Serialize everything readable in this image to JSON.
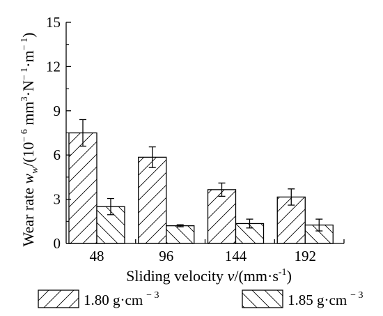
{
  "chart_data": {
    "type": "bar",
    "categories": [
      "48",
      "96",
      "144",
      "192"
    ],
    "series": [
      {
        "name": "1.80 g·cm",
        "name_superscript": "− 3",
        "values": [
          7.5,
          5.85,
          3.65,
          3.15
        ],
        "errors": [
          0.9,
          0.7,
          0.45,
          0.55
        ],
        "hatch": "forward"
      },
      {
        "name": "1.85 g·cm",
        "name_superscript": "− 3",
        "values": [
          2.5,
          1.2,
          1.35,
          1.25
        ],
        "errors": [
          0.55,
          0.07,
          0.3,
          0.4
        ],
        "hatch": "backward"
      }
    ],
    "xlabel": {
      "prefix": "Sliding velocity ",
      "var": "v",
      "mid": "/(mm·s",
      "sup": "-1",
      "suffix": ")"
    },
    "ylabel": {
      "prefix": "Wear rate ",
      "var": "w",
      "sub": "w",
      "mid": "/(10",
      "sup1": "− 6",
      "mid2": " mm",
      "sup2": "3",
      "mid3": "·N",
      "sup3": "− 1",
      "mid4": "·m",
      "sup4": "− 1",
      "suffix": ")"
    },
    "yticks": [
      "0",
      "3",
      "6",
      "9",
      "12",
      "15"
    ],
    "ylim": [
      0,
      15
    ],
    "grid": false,
    "legend_position": "bottom"
  }
}
